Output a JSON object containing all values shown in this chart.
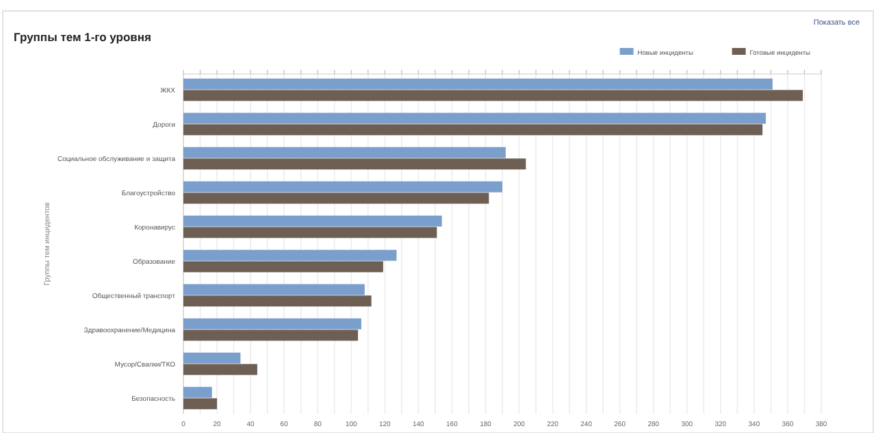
{
  "chart_data": {
    "type": "bar",
    "orientation": "horizontal",
    "title": "Группы тем 1-го уровня",
    "ylabel": "Группы тем инцидентов",
    "annotations": [
      "Показать все"
    ],
    "categories": [
      "ЖКХ",
      "Дороги",
      "Социальное обслуживание и защита",
      "Благоустройство",
      "Коронавирус",
      "Образование",
      "Общественный транспорт",
      "Здравоохранение/Медицина",
      "Мусор/Свалки/ТКО",
      "Безопасность"
    ],
    "series": [
      {
        "name": "Новые инциденты",
        "color": "#7b9fcc",
        "values": [
          351,
          347,
          192,
          190,
          154,
          127,
          108,
          106,
          34,
          17
        ]
      },
      {
        "name": "Готовые инциденты",
        "color": "#6e5f55",
        "values": [
          369,
          345,
          204,
          182,
          151,
          119,
          112,
          104,
          44,
          20
        ]
      }
    ],
    "xlim": [
      0,
      380
    ],
    "xticks": [
      0,
      {
        "value": 10,
        "label": null
      },
      20,
      {
        "value": 30,
        "label": null
      },
      40,
      {
        "value": 50,
        "label": null
      },
      60,
      {
        "value": 70,
        "label": null
      },
      80,
      {
        "value": 90,
        "label": null
      },
      100,
      {
        "value": 110,
        "label": null
      },
      120,
      {
        "value": 130,
        "label": null
      },
      140,
      {
        "value": 150,
        "label": null
      },
      160,
      {
        "value": 170,
        "label": null
      },
      180,
      {
        "value": 190,
        "label": null
      },
      200,
      {
        "value": 210,
        "label": null
      },
      220,
      {
        "value": 230,
        "label": null
      },
      240,
      {
        "value": 250,
        "label": null
      },
      260,
      {
        "value": 270,
        "label": null
      },
      280,
      {
        "value": 290,
        "label": null
      },
      300,
      {
        "value": 310,
        "label": null
      },
      320,
      {
        "value": 330,
        "label": null
      },
      340,
      {
        "value": 350,
        "label": null
      },
      360,
      {
        "value": 370,
        "label": null
      },
      380
    ],
    "grid": "x",
    "legend": "top right"
  }
}
